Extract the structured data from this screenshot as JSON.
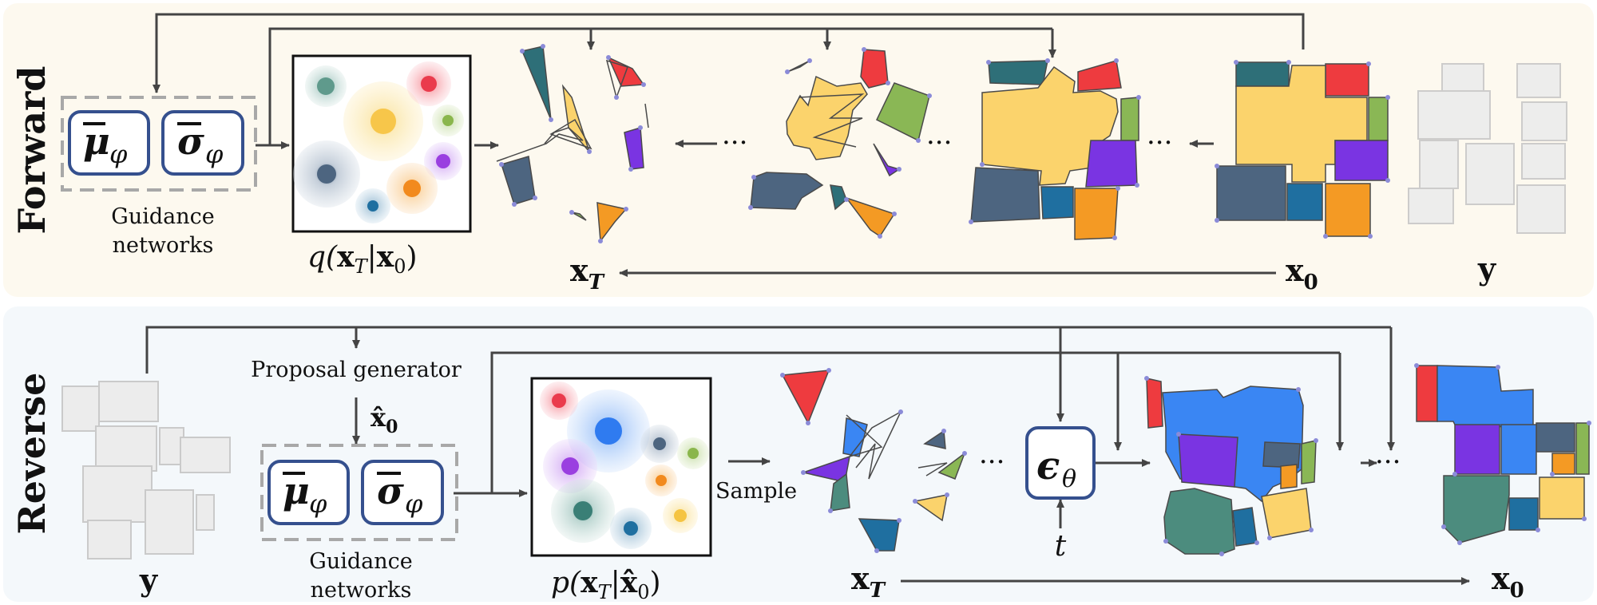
{
  "panels": {
    "forward": {
      "title": "Forward",
      "guidance_mu": "μ",
      "guidance_sigma": "σ",
      "guidance_sub": "φ",
      "guidance_label_line1": "Guidance",
      "guidance_label_line2": "networks",
      "dist_label_prefix": "q(",
      "dist_x": "x",
      "dist_x_sub": "T",
      "dist_sep": "|",
      "dist_x0": "x",
      "dist_x0_sub": "0",
      "dist_close": ")",
      "xT_label": "x",
      "xT_sub": "T",
      "x0_label": "x",
      "x0_sub": "0",
      "y_label": "y",
      "dots": "···"
    },
    "reverse": {
      "title": "Reverse",
      "proposal_label": "Proposal generator",
      "xhat0": "x̂",
      "xhat0_sub": "0",
      "guidance_mu": "μ",
      "guidance_sigma": "σ",
      "guidance_sub": "φ",
      "guidance_label_line1": "Guidance",
      "guidance_label_line2": "networks",
      "dist_label_prefix": "p(",
      "dist_x": "x",
      "dist_x_sub": "T",
      "dist_sep": "|",
      "dist_xhat": "x̂",
      "dist_xhat_sub": "0",
      "dist_close": ")",
      "sample_label": "Sample",
      "eps": "ϵ",
      "eps_sub": "θ",
      "t_label": "t",
      "xT_label": "x",
      "xT_sub": "T",
      "x0_label": "x",
      "x0_sub": "0",
      "y_label": "y",
      "dots": "···"
    }
  },
  "colors": {
    "forward_bg": "#fdf9ef",
    "reverse_bg": "#f4f8fb",
    "box_border": "#35508e",
    "red": "#ee3b3f",
    "teal": "#2e6f78",
    "yellow": "#fbd36c",
    "green": "#8ab755",
    "purple": "#7a34e2",
    "slate": "#4d6580",
    "orange": "#f49a24",
    "blue": "#3a86f3",
    "tealgreen": "#4c8c7e"
  }
}
